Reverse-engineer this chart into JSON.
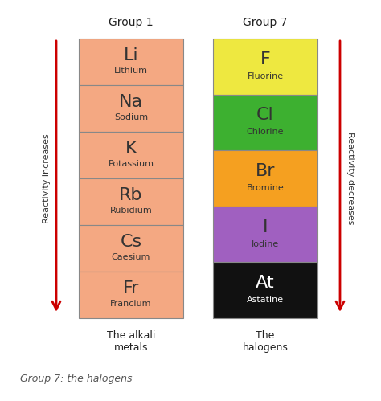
{
  "group1_title": "Group 1",
  "group7_title": "Group 7",
  "group1_elements": [
    {
      "symbol": "Li",
      "name": "Lithium"
    },
    {
      "symbol": "Na",
      "name": "Sodium"
    },
    {
      "symbol": "K",
      "name": "Potassium"
    },
    {
      "symbol": "Rb",
      "name": "Rubidium"
    },
    {
      "symbol": "Cs",
      "name": "Caesium"
    },
    {
      "symbol": "Fr",
      "name": "Francium"
    }
  ],
  "group7_elements": [
    {
      "symbol": "F",
      "name": "Fluorine",
      "color": "#EEE840",
      "tc": "#333333"
    },
    {
      "symbol": "Cl",
      "name": "Chlorine",
      "color": "#3DB030",
      "tc": "#333333"
    },
    {
      "symbol": "Br",
      "name": "Bromine",
      "color": "#F5A020",
      "tc": "#333333"
    },
    {
      "symbol": "I",
      "name": "Iodine",
      "color": "#A060C0",
      "tc": "#333333"
    },
    {
      "symbol": "At",
      "name": "Astatine",
      "color": "#111111",
      "tc": "#ffffff"
    }
  ],
  "group1_color": "#F4A882",
  "group1_text_color": "#333333",
  "group1_label": "The alkali\nmetals",
  "group7_label": "The\nhalogens",
  "left_arrow_label": "Reactivity increases",
  "right_arrow_label": "Reactivity decreases",
  "bottom_note": "Group 7: the halogens",
  "arrow_color": "#CC0000",
  "background_color": "#ffffff",
  "title_fontsize": 10,
  "symbol_fontsize": 16,
  "name_fontsize": 8,
  "label_fontsize": 9,
  "arrow_label_fontsize": 8,
  "note_fontsize": 9
}
